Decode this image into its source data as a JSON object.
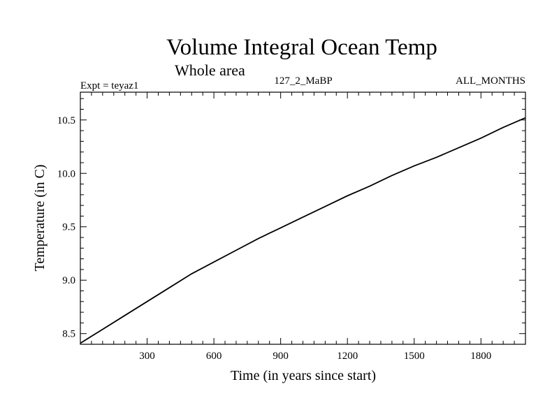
{
  "chart_data": {
    "type": "line",
    "title": "Volume Integral Ocean Temp",
    "subtitle": "Whole area",
    "header_left": "Expt = teyaz1",
    "header_center": "127_2_MaBP",
    "header_right": "ALL_MONTHS",
    "xlabel": "Time (in years since start)",
    "ylabel": "Temperature (in C)",
    "xlim": [
      0,
      2000
    ],
    "ylim": [
      8.4,
      10.76
    ],
    "xticks": [
      300,
      600,
      900,
      1200,
      1500,
      1800
    ],
    "xtick_labels": [
      "300",
      "600",
      "900",
      "1200",
      "1500",
      "1800"
    ],
    "yticks": [
      8.5,
      9.0,
      9.5,
      10.0,
      10.5
    ],
    "ytick_labels": [
      "8.5",
      "9.0",
      "9.5",
      "10.0",
      "10.5"
    ],
    "grid": false,
    "series": [
      {
        "name": "Volume Integral Ocean Temp",
        "x": [
          0,
          100,
          200,
          300,
          400,
          500,
          600,
          700,
          800,
          900,
          1000,
          1100,
          1200,
          1300,
          1400,
          1500,
          1600,
          1700,
          1800,
          1900,
          2000
        ],
        "y": [
          8.41,
          8.54,
          8.67,
          8.8,
          8.93,
          9.06,
          9.17,
          9.28,
          9.39,
          9.49,
          9.59,
          9.69,
          9.79,
          9.88,
          9.98,
          10.07,
          10.15,
          10.24,
          10.33,
          10.43,
          10.52
        ]
      }
    ]
  }
}
